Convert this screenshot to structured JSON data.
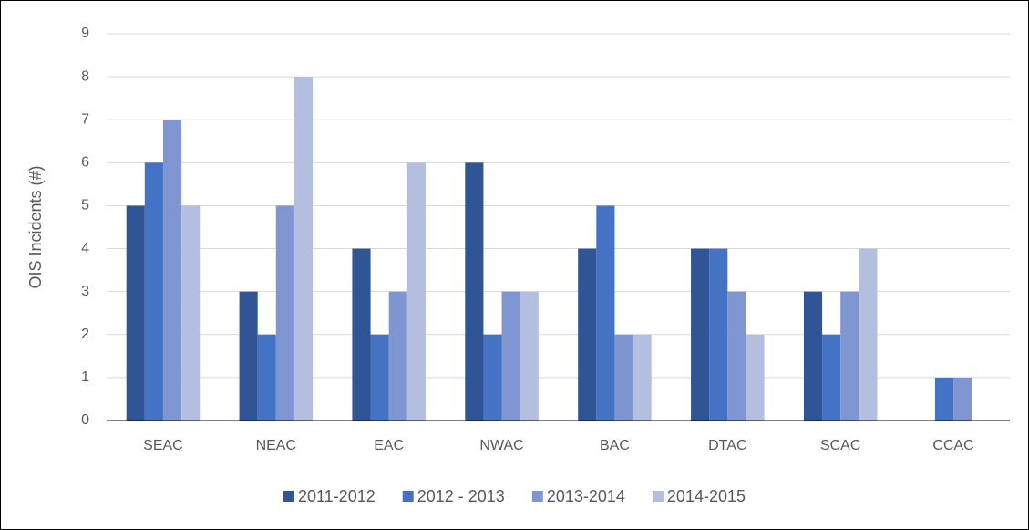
{
  "chart_data": {
    "type": "bar",
    "categories": [
      "SEAC",
      "NEAC",
      "EAC",
      "NWAC",
      "BAC",
      "DTAC",
      "SCAC",
      "CCAC"
    ],
    "series": [
      {
        "name": "2011-2012",
        "color": "#2f5597",
        "values": [
          5,
          3,
          4,
          6,
          4,
          4,
          3,
          0
        ]
      },
      {
        "name": "2012 - 2013",
        "color": "#4472c4",
        "values": [
          6,
          2,
          2,
          2,
          5,
          4,
          2,
          1
        ]
      },
      {
        "name": "2013-2014",
        "color": "#7f96d2",
        "values": [
          7,
          5,
          3,
          3,
          2,
          3,
          3,
          1
        ]
      },
      {
        "name": "2014-2015",
        "color": "#b4bfe0",
        "values": [
          5,
          8,
          6,
          3,
          2,
          2,
          4,
          0
        ]
      }
    ],
    "y_label": "OIS Incidents (#)",
    "ylim": [
      0,
      9
    ],
    "yticks": [
      0,
      1,
      2,
      3,
      4,
      5,
      6,
      7,
      8,
      9
    ],
    "grid": true,
    "legend": "bottom"
  }
}
